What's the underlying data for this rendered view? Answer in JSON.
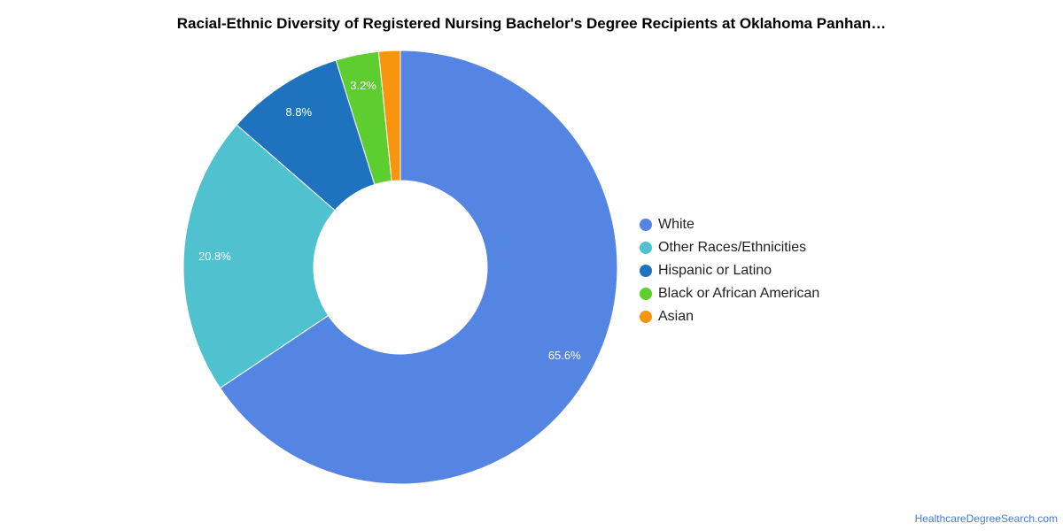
{
  "chart_data": {
    "type": "pie",
    "title": "Racial-Ethnic Diversity of Registered Nursing Bachelor's Degree Recipients at Oklahoma Panhan…",
    "categories": [
      "White",
      "Other Races/Ethnicities",
      "Hispanic or Latino",
      "Black or African American",
      "Asian"
    ],
    "values": [
      65.6,
      20.8,
      8.8,
      3.2,
      1.6
    ],
    "data_labels": [
      "65.6%",
      "20.8%",
      "8.8%",
      "3.2%",
      ""
    ],
    "colors": [
      "#5585e2",
      "#50c1ce",
      "#1f73be",
      "#5dcd2f",
      "#f8940d"
    ],
    "donut": true,
    "legend_position": "right"
  },
  "source": {
    "text": "HealthcareDegreeSearch.com"
  }
}
